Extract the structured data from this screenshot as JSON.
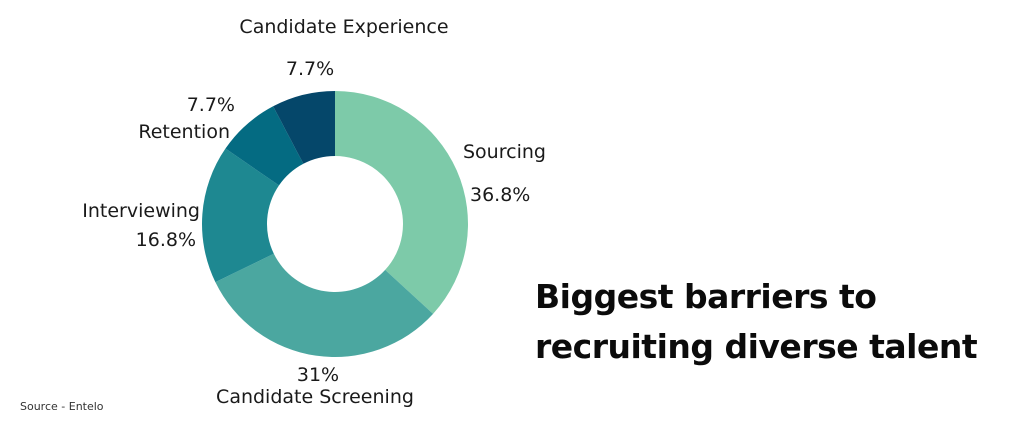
{
  "chart_data": {
    "type": "pie",
    "donut": true,
    "title_lines": [
      "Biggest barriers to",
      "recruiting diverse talent"
    ],
    "source": "Source - Entelo",
    "slices": [
      {
        "name": "Sourcing",
        "value": 36.8,
        "value_label": "36.8%",
        "color": "#7dcaa9"
      },
      {
        "name": "Candidate Screening",
        "value": 31,
        "value_label": "31%",
        "color": "#4ba7a0"
      },
      {
        "name": "Interviewing",
        "value": 16.8,
        "value_label": "16.8%",
        "color": "#1e8891"
      },
      {
        "name": "Retention",
        "value": 7.7,
        "value_label": "7.7%",
        "color": "#046b82"
      },
      {
        "name": "Candidate Experience",
        "value": 7.7,
        "value_label": "7.7%",
        "color": "#05476a"
      }
    ]
  }
}
